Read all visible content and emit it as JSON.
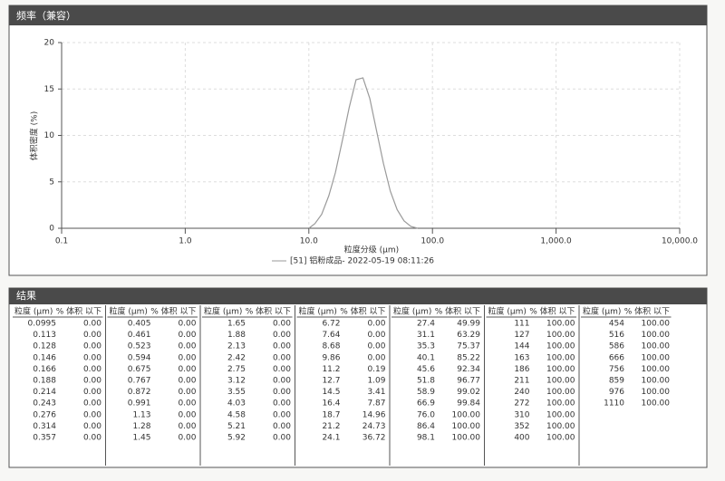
{
  "chart_data": {
    "type": "line",
    "title": "频率（兼容）",
    "x_label": "粒度分级 (μm)",
    "y_label": "体积密度 (%)",
    "log_x": true,
    "grid": true,
    "xlim": [
      0.1,
      10000
    ],
    "xticks": [
      0.1,
      {
        "value": 1,
        "label": "1.0"
      },
      {
        "value": 10,
        "label": "10.0"
      },
      {
        "value": 100,
        "label": "100.0"
      },
      {
        "value": 1000,
        "label": "1,000.0"
      },
      {
        "value": 10000,
        "label": "10,000.0"
      }
    ],
    "ylim": [
      0,
      20
    ],
    "yticks": [
      0,
      5,
      10,
      15,
      20
    ],
    "series": [
      {
        "name": "[51] 铝粉成品- 2022-05-19 08:11:26",
        "color": "#9a9a9a",
        "x": [
          10,
          11.2,
          12.7,
          14.5,
          16.4,
          18.7,
          21.2,
          24.1,
          27.4,
          31.1,
          35.3,
          40.1,
          45.6,
          51.8,
          58.9,
          66.9,
          76
        ],
        "values": [
          0,
          0.5,
          1.5,
          3.5,
          6,
          9.5,
          13,
          16,
          16.2,
          14,
          10.5,
          7,
          4,
          2,
          0.8,
          0.2,
          0
        ]
      }
    ]
  },
  "results": {
    "title": "结果",
    "headers": [
      "粒度 (μm)",
      "% 体积 以下"
    ],
    "groups": [
      [
        [
          "0.0995",
          "0.00"
        ],
        [
          "0.113",
          "0.00"
        ],
        [
          "0.128",
          "0.00"
        ],
        [
          "0.146",
          "0.00"
        ],
        [
          "0.166",
          "0.00"
        ],
        [
          "0.188",
          "0.00"
        ],
        [
          "0.214",
          "0.00"
        ],
        [
          "0.243",
          "0.00"
        ],
        [
          "0.276",
          "0.00"
        ],
        [
          "0.314",
          "0.00"
        ],
        [
          "0.357",
          "0.00"
        ]
      ],
      [
        [
          "0.405",
          "0.00"
        ],
        [
          "0.461",
          "0.00"
        ],
        [
          "0.523",
          "0.00"
        ],
        [
          "0.594",
          "0.00"
        ],
        [
          "0.675",
          "0.00"
        ],
        [
          "0.767",
          "0.00"
        ],
        [
          "0.872",
          "0.00"
        ],
        [
          "0.991",
          "0.00"
        ],
        [
          "1.13",
          "0.00"
        ],
        [
          "1.28",
          "0.00"
        ],
        [
          "1.45",
          "0.00"
        ]
      ],
      [
        [
          "1.65",
          "0.00"
        ],
        [
          "1.88",
          "0.00"
        ],
        [
          "2.13",
          "0.00"
        ],
        [
          "2.42",
          "0.00"
        ],
        [
          "2.75",
          "0.00"
        ],
        [
          "3.12",
          "0.00"
        ],
        [
          "3.55",
          "0.00"
        ],
        [
          "4.03",
          "0.00"
        ],
        [
          "4.58",
          "0.00"
        ],
        [
          "5.21",
          "0.00"
        ],
        [
          "5.92",
          "0.00"
        ]
      ],
      [
        [
          "6.72",
          "0.00"
        ],
        [
          "7.64",
          "0.00"
        ],
        [
          "8.68",
          "0.00"
        ],
        [
          "9.86",
          "0.00"
        ],
        [
          "11.2",
          "0.19"
        ],
        [
          "12.7",
          "1.09"
        ],
        [
          "14.5",
          "3.41"
        ],
        [
          "16.4",
          "7.87"
        ],
        [
          "18.7",
          "14.96"
        ],
        [
          "21.2",
          "24.73"
        ],
        [
          "24.1",
          "36.72"
        ]
      ],
      [
        [
          "27.4",
          "49.99"
        ],
        [
          "31.1",
          "63.29"
        ],
        [
          "35.3",
          "75.37"
        ],
        [
          "40.1",
          "85.22"
        ],
        [
          "45.6",
          "92.34"
        ],
        [
          "51.8",
          "96.77"
        ],
        [
          "58.9",
          "99.02"
        ],
        [
          "66.9",
          "99.84"
        ],
        [
          "76.0",
          "100.00"
        ],
        [
          "86.4",
          "100.00"
        ],
        [
          "98.1",
          "100.00"
        ]
      ],
      [
        [
          "111",
          "100.00"
        ],
        [
          "127",
          "100.00"
        ],
        [
          "144",
          "100.00"
        ],
        [
          "163",
          "100.00"
        ],
        [
          "186",
          "100.00"
        ],
        [
          "211",
          "100.00"
        ],
        [
          "240",
          "100.00"
        ],
        [
          "272",
          "100.00"
        ],
        [
          "310",
          "100.00"
        ],
        [
          "352",
          "100.00"
        ],
        [
          "400",
          "100.00"
        ]
      ],
      [
        [
          "454",
          "100.00"
        ],
        [
          "516",
          "100.00"
        ],
        [
          "586",
          "100.00"
        ],
        [
          "666",
          "100.00"
        ],
        [
          "756",
          "100.00"
        ],
        [
          "859",
          "100.00"
        ],
        [
          "976",
          "100.00"
        ],
        [
          "1110",
          "100.00"
        ]
      ]
    ]
  }
}
